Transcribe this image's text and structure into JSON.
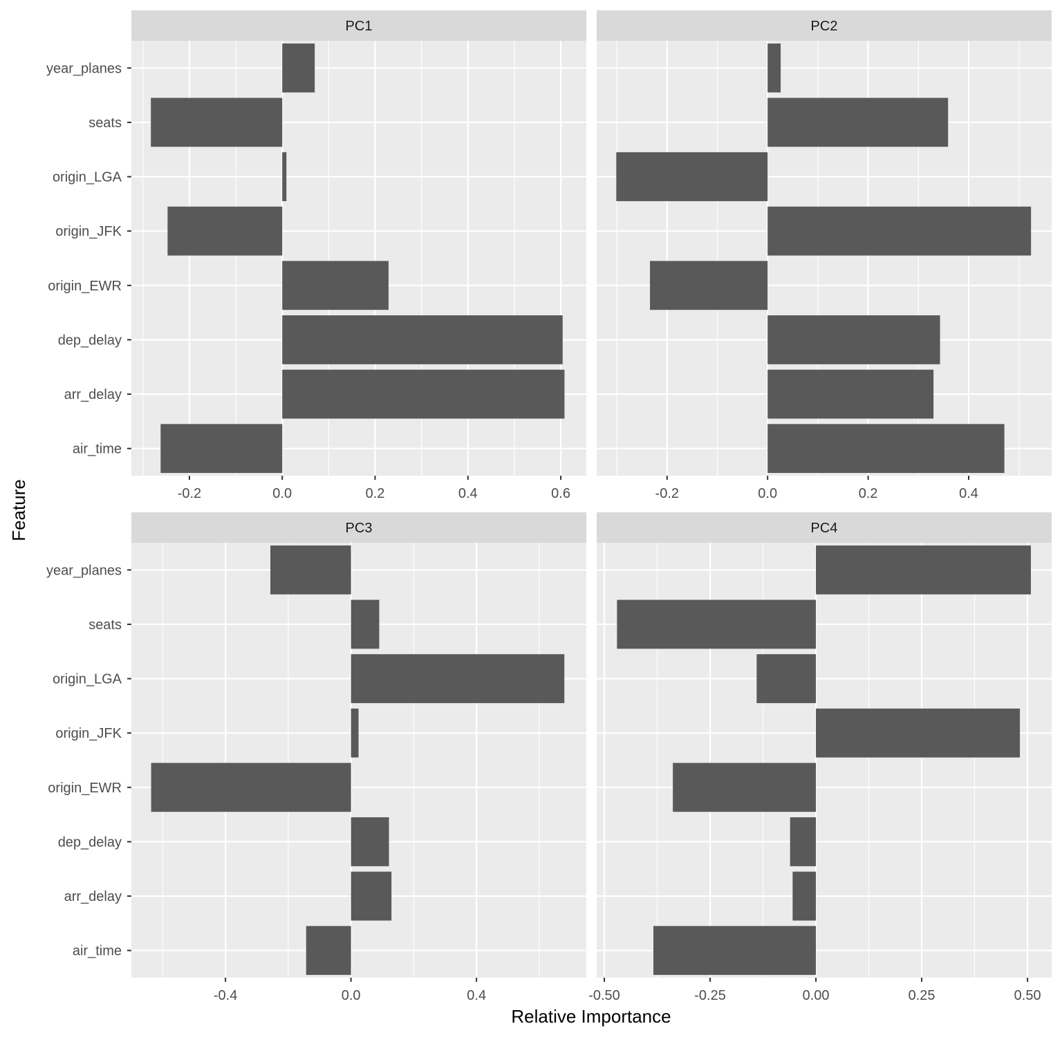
{
  "chart_data": {
    "type": "bar",
    "orientation": "horizontal",
    "xlabel": "Relative Importance",
    "ylabel": "Feature",
    "categories": [
      "year_planes",
      "seats",
      "origin_LGA",
      "origin_JFK",
      "origin_EWR",
      "dep_delay",
      "arr_delay",
      "air_time"
    ],
    "grid": true,
    "bar_color": "#595959",
    "panel_background": "#ebebeb",
    "strip_background": "#d9d9d9",
    "gridline_color": "#ffffff",
    "facets": [
      {
        "name": "PC1",
        "values": [
          0.07,
          -0.283,
          0.009,
          -0.247,
          0.229,
          0.604,
          0.608,
          -0.262
        ],
        "xlim": [
          -0.325,
          0.655
        ],
        "ticks": [
          -0.2,
          0.0,
          0.2,
          0.4,
          0.6
        ],
        "tick_labels": [
          "-0.2",
          "0.0",
          "0.2",
          "0.4",
          "0.6"
        ]
      },
      {
        "name": "PC2",
        "values": [
          0.026,
          0.359,
          -0.301,
          0.524,
          -0.234,
          0.343,
          0.33,
          0.471
        ],
        "xlim": [
          -0.34,
          0.565
        ],
        "ticks": [
          -0.2,
          0.0,
          0.2,
          0.4
        ],
        "tick_labels": [
          "-0.2",
          "0.0",
          "0.2",
          "0.4"
        ]
      },
      {
        "name": "PC3",
        "values": [
          -0.257,
          0.09,
          0.68,
          0.024,
          -0.637,
          0.121,
          0.129,
          -0.143
        ],
        "xlim": [
          -0.7,
          0.75
        ],
        "ticks": [
          -0.4,
          0.0,
          0.4
        ],
        "tick_labels": [
          "-0.4",
          "0.0",
          "0.4"
        ]
      },
      {
        "name": "PC4",
        "values": [
          0.508,
          -0.47,
          -0.14,
          0.482,
          -0.338,
          -0.061,
          -0.055,
          -0.384
        ],
        "xlim": [
          -0.518,
          0.557
        ],
        "ticks": [
          -0.5,
          -0.25,
          0.0,
          0.25,
          0.5
        ],
        "tick_labels": [
          "-0.50",
          "-0.25",
          "0.00",
          "0.25",
          "0.50"
        ]
      }
    ]
  }
}
